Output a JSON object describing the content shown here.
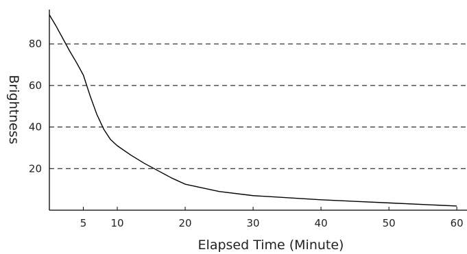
{
  "chart_data": {
    "type": "line",
    "title": "",
    "xlabel": "Elapsed Time (Minute)",
    "ylabel": "Brightness",
    "xlim": [
      0,
      61.5
    ],
    "ylim": [
      0,
      96.5
    ],
    "xticks": [
      5,
      10,
      20,
      30,
      40,
      50,
      60
    ],
    "yticks": [
      20,
      40,
      60,
      80
    ],
    "grid": "horizontal dashed at y ticks",
    "legend": "none",
    "line_color": "#000000",
    "series": [
      {
        "x": [
          0,
          1,
          2,
          3,
          4,
          5,
          6,
          7,
          8,
          9,
          10,
          12,
          14,
          16,
          18,
          20,
          25,
          30,
          40,
          50,
          60
        ],
        "y": [
          94,
          88.5,
          82.5,
          76.5,
          71,
          65,
          55,
          46,
          39,
          34,
          31,
          26.5,
          22.5,
          19,
          15.5,
          12.5,
          9,
          7,
          5,
          3.5,
          2
        ]
      }
    ]
  }
}
